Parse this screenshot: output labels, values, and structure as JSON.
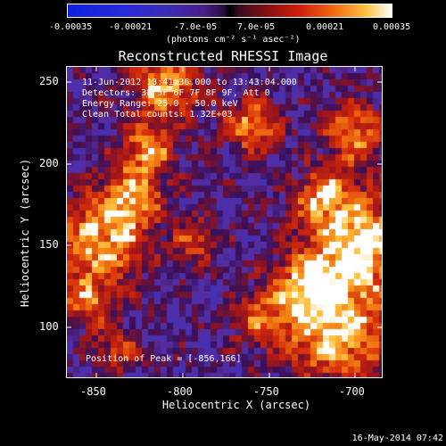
{
  "colorbar": {
    "ticks": [
      "-0.00035",
      "-0.00021",
      "-7.0e-05",
      "7.0e-05",
      "0.00021",
      "0.00035"
    ],
    "units": "(photons cm⁻² s⁻¹ asec⁻²)"
  },
  "plot": {
    "title": "Reconstructed RHESSI Image",
    "annotations": [
      "11-Jun-2012 13:41:36.000 to 13:43:04.000",
      "Detectors: 3F 5F 6F 7F 8F 9F, Att 0",
      "Energy Range: 25.0 - 50.0 keV",
      "Clean    Total counts: 1.32E+03"
    ],
    "peak_label": "Position of Peak = [-856,166]",
    "x_axis": {
      "title": "Heliocentric X (arcsec)",
      "ticks": [
        "-850",
        "-800",
        "-750",
        "-700"
      ]
    },
    "y_axis": {
      "title": "Heliocentric Y (arcsec)",
      "ticks": [
        "100",
        "150",
        "200",
        "250"
      ]
    }
  },
  "timestamp": "16-May-2014 07:42"
}
